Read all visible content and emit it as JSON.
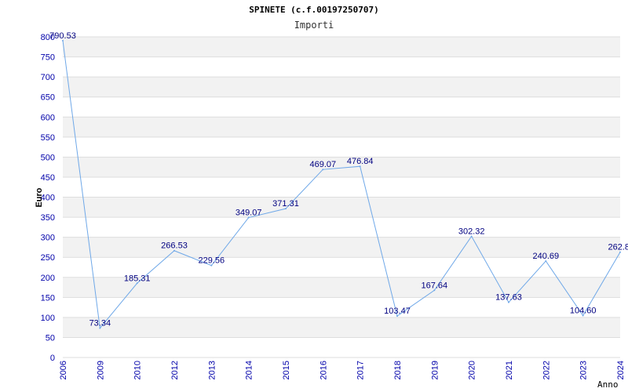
{
  "chart_data": {
    "type": "line",
    "title": "SPINETE (c.f.00197250707)",
    "subtitle": "Importi",
    "xlabel": "Anno",
    "ylabel": "Euro",
    "categories": [
      "2006",
      "2009",
      "2010",
      "2012",
      "2013",
      "2014",
      "2015",
      "2016",
      "2017",
      "2018",
      "2019",
      "2020",
      "2021",
      "2022",
      "2023",
      "2024"
    ],
    "series": [
      {
        "name": "Importi",
        "values": [
          790.53,
          73.34,
          185.31,
          266.53,
          229.56,
          349.07,
          371.31,
          469.07,
          476.84,
          103.47,
          167.64,
          302.32,
          137.63,
          240.69,
          104.6,
          262.8
        ],
        "labels": [
          "790.53",
          "73.34",
          "185.31",
          "266.53",
          "229.56",
          "349.07",
          "371.31",
          "469.07",
          "476.84",
          "103.47",
          "167.64",
          "302.32",
          "137.63",
          "240.69",
          "104.60",
          "262.8"
        ]
      }
    ],
    "ylim": [
      0,
      800
    ],
    "yticks": [
      "0",
      "50",
      "100",
      "150",
      "200",
      "250",
      "300",
      "350",
      "400",
      "450",
      "500",
      "550",
      "600",
      "650",
      "700",
      "750",
      "800"
    ],
    "line_color": "#6fa8e8",
    "band_color": "#f2f2f2",
    "grid_color": "#dddddd",
    "tick_color": "#0000aa",
    "label_color": "#000080"
  }
}
